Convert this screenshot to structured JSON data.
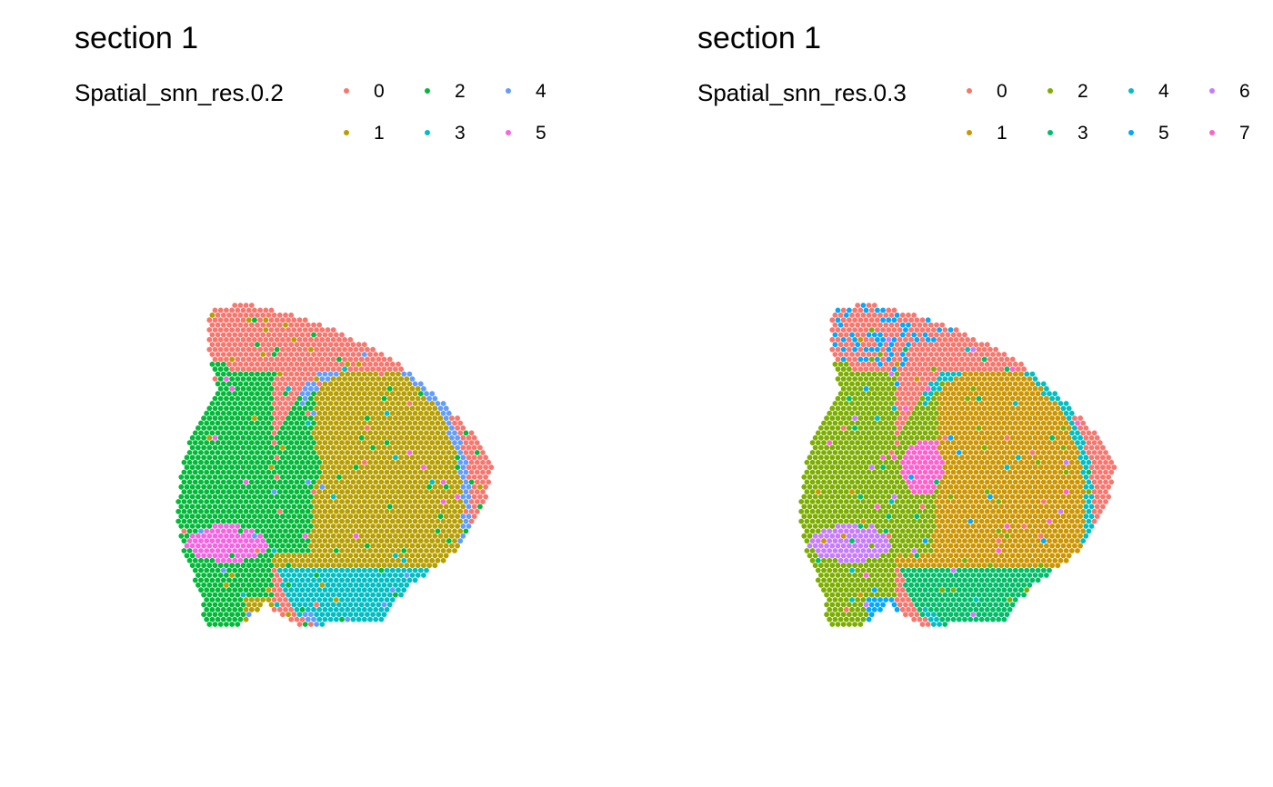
{
  "panels": [
    {
      "title": "section 1",
      "legend_title": "Spatial_snn_res.0.2",
      "legend_position": "top-right",
      "legend_items": [
        {
          "label": "0",
          "color": "#F8766D"
        },
        {
          "label": "1",
          "color": "#B79F00"
        },
        {
          "label": "2",
          "color": "#00BA38"
        },
        {
          "label": "3",
          "color": "#00BFC4"
        },
        {
          "label": "4",
          "color": "#619CFF"
        },
        {
          "label": "5",
          "color": "#F564E3"
        }
      ]
    },
    {
      "title": "section 1",
      "legend_title": "Spatial_snn_res.0.3",
      "legend_position": "top-right",
      "legend_items": [
        {
          "label": "0",
          "color": "#F8766D"
        },
        {
          "label": "1",
          "color": "#CD9600"
        },
        {
          "label": "2",
          "color": "#7CAE00"
        },
        {
          "label": "3",
          "color": "#00BE67"
        },
        {
          "label": "4",
          "color": "#00BFC4"
        },
        {
          "label": "5",
          "color": "#00A9FF"
        },
        {
          "label": "6",
          "color": "#C77CFF"
        },
        {
          "label": "7",
          "color": "#FF61CC"
        }
      ]
    }
  ],
  "chart_data": [
    {
      "type": "scatter",
      "title": "section 1",
      "legend_title": "Spatial_snn_res.0.2",
      "series": [
        {
          "name": "0",
          "color": "#F8766D"
        },
        {
          "name": "1",
          "color": "#B79F00"
        },
        {
          "name": "2",
          "color": "#00BA38"
        },
        {
          "name": "3",
          "color": "#00BFC4"
        },
        {
          "name": "4",
          "color": "#619CFF"
        },
        {
          "name": "5",
          "color": "#F564E3"
        }
      ],
      "axes": "none",
      "grid": false
    },
    {
      "type": "scatter",
      "title": "section 1",
      "legend_title": "Spatial_snn_res.0.3",
      "series": [
        {
          "name": "0",
          "color": "#F8766D"
        },
        {
          "name": "1",
          "color": "#CD9600"
        },
        {
          "name": "2",
          "color": "#7CAE00"
        },
        {
          "name": "3",
          "color": "#00BE67"
        },
        {
          "name": "4",
          "color": "#00BFC4"
        },
        {
          "name": "5",
          "color": "#00A9FF"
        },
        {
          "name": "6",
          "color": "#C77CFF"
        },
        {
          "name": "7",
          "color": "#FF61CC"
        }
      ],
      "axes": "none",
      "grid": false
    }
  ]
}
